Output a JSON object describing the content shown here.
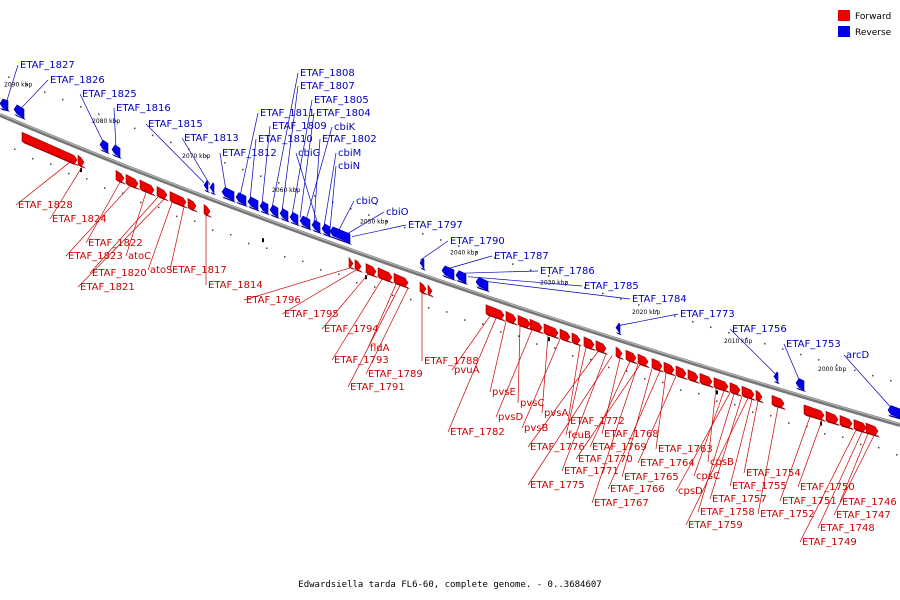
{
  "caption": "Edwardsiella tarda FL6-60, complete genome. - 0..3684607",
  "legend": [
    {
      "label": "Forward",
      "color": "#ee0000"
    },
    {
      "label": "Reverse",
      "color": "#0000ee"
    }
  ],
  "scale_labels": [
    "2090 kbp",
    "2080 kbp",
    "2070 kbp",
    "2060 kbp",
    "2050 kbp",
    "2040 kbp",
    "2030 kbp",
    "2020 kbp",
    "2010 kbp",
    "2000 kbp"
  ],
  "reverse_genes": [
    "ETAF_1827",
    "ETAF_1826",
    "ETAF_1825",
    "ETAF_1816",
    "ETAF_1815",
    "ETAF_1813",
    "ETAF_1812",
    "ETAF_1811",
    "ETAF_1810",
    "ETAF_1809",
    "ETAF_1808",
    "ETAF_1807",
    "ETAF_1805",
    "ETAF_1804",
    "cbiK",
    "ETAF_1802",
    "cbiG",
    "cbiM",
    "cbiN",
    "cbiQ",
    "cbiO",
    "ETAF_1797",
    "ETAF_1790",
    "ETAF_1787",
    "ETAF_1786",
    "ETAF_1785",
    "ETAF_1784",
    "ETAF_1773",
    "ETAF_1756",
    "ETAF_1753",
    "arcD"
  ],
  "forward_genes": [
    "ETAF_1828",
    "ETAF_1824",
    "ETAF_1822",
    "ETAF_1823",
    "atoC",
    "ETAF_1820",
    "ETAF_1821",
    "atoS",
    "ETAF_1817",
    "ETAF_1814",
    "ETAF_1796",
    "ETAF_1795",
    "ETAF_1794",
    "ETAF_1793",
    "fldA",
    "ETAF_1788",
    "ETAF_1789",
    "ETAF_1791",
    "pvuA",
    "pvsE",
    "pvsC",
    "pvsD",
    "pvsA",
    "pvsB",
    "ETAF_1782",
    "ETAF_1772",
    "feuB",
    "ETAF_1768",
    "ETAF_1776",
    "ETAF_1769",
    "ETAF_1770",
    "ETAF_1763",
    "ETAF_1764",
    "ETAF_1771",
    "ETAF_1765",
    "cpsB",
    "ETAF_1775",
    "ETAF_1766",
    "cpsC",
    "cpsD",
    "ETAF_1767",
    "ETAF_1757",
    "ETAF_1754",
    "ETAF_1755",
    "ETAF_1758",
    "ETAF_1759",
    "ETAF_1752",
    "ETAF_1750",
    "ETAF_1751",
    "ETAF_1746",
    "ETAF_1747",
    "ETAF_1748",
    "ETAF_1749"
  ]
}
